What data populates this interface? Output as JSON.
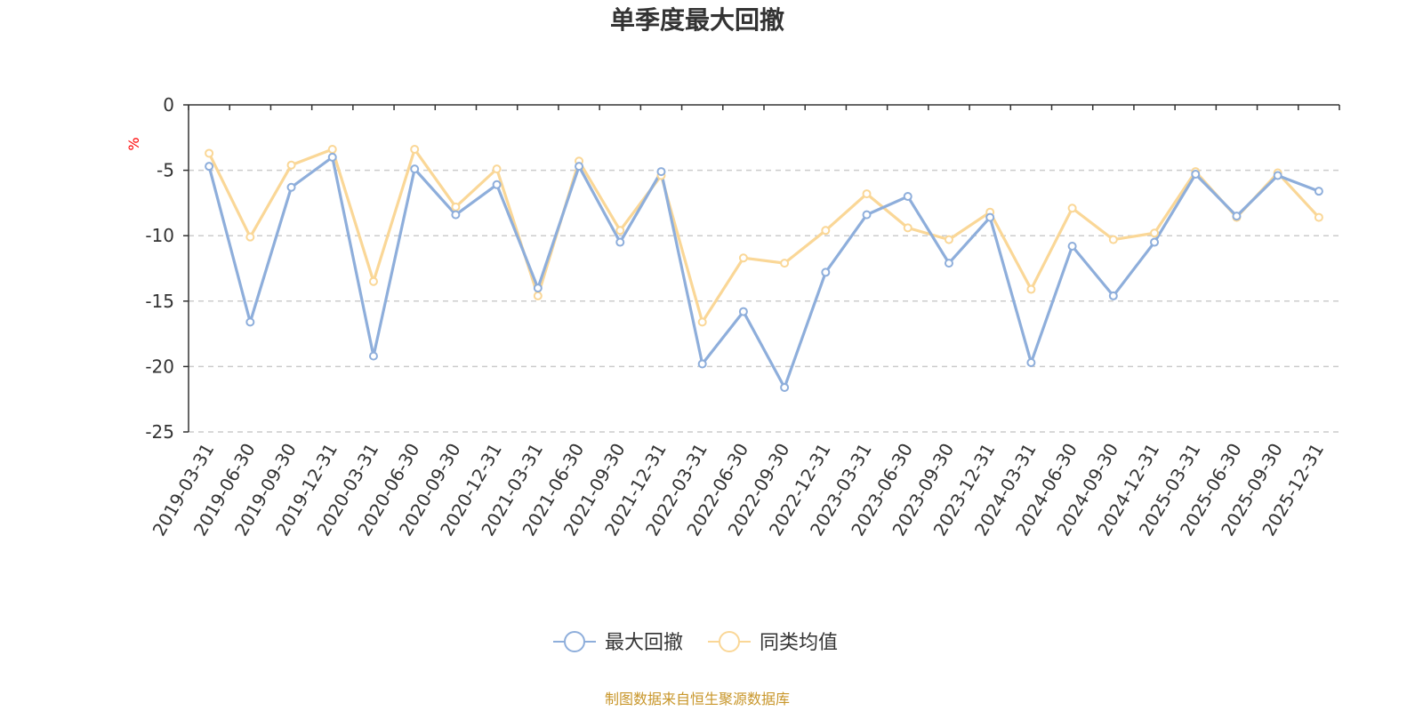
{
  "chart_data": {
    "type": "line",
    "title": "单季度最大回撤",
    "ylabel": "%",
    "xlabel": "",
    "ylim": [
      -25,
      0
    ],
    "yticks": [
      0,
      -5,
      -10,
      -15,
      -20,
      -25
    ],
    "grid": true,
    "legend_position": "bottom-center",
    "categories": [
      "2019-03-31",
      "2019-06-30",
      "2019-09-30",
      "2019-12-31",
      "2020-03-31",
      "2020-06-30",
      "2020-09-30",
      "2020-12-31",
      "2021-03-31",
      "2021-06-30",
      "2021-09-30",
      "2021-12-31",
      "2022-03-31",
      "2022-06-30",
      "2022-09-30",
      "2022-12-31",
      "2023-03-31",
      "2023-06-30",
      "2023-09-30",
      "2023-12-31",
      "2024-03-31",
      "2024-06-30",
      "2024-09-30",
      "2024-12-31",
      "2025-03-31",
      "2025-06-30",
      "2025-09-30",
      "2025-12-31"
    ],
    "series": [
      {
        "name": "最大回撤",
        "color": "#8eaedb",
        "values": [
          -4.7,
          -16.6,
          -6.3,
          -4.0,
          -19.2,
          -4.9,
          -8.4,
          -6.1,
          -14.0,
          -4.7,
          -10.5,
          -5.1,
          -19.8,
          -15.8,
          -21.6,
          -12.8,
          -8.4,
          -7.0,
          -12.1,
          -8.6,
          -19.7,
          -10.8,
          -14.6,
          -10.5,
          -5.3,
          -8.5,
          -5.4,
          -6.6
        ]
      },
      {
        "name": "同类均值",
        "color": "#fad797",
        "values": [
          -3.7,
          -10.1,
          -4.6,
          -3.4,
          -13.5,
          -3.4,
          -7.8,
          -4.9,
          -14.6,
          -4.3,
          -9.6,
          -5.4,
          -16.6,
          -11.7,
          -12.1,
          -9.6,
          -6.8,
          -9.4,
          -10.3,
          -8.2,
          -14.1,
          -7.9,
          -10.3,
          -9.8,
          -5.1,
          -8.6,
          -5.2,
          -8.6
        ]
      }
    ]
  },
  "source_note": "制图数据来自恒生聚源数据库"
}
